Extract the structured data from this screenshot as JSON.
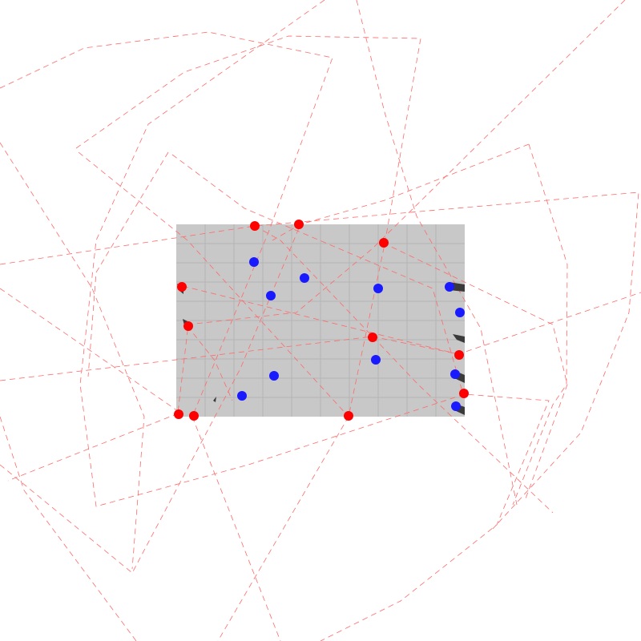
{
  "colors": {
    "background": "#ffffff",
    "arena_fill": "#c8c8c8",
    "arena_grid": "#b4b4b4",
    "path_line": "#ff6a6a",
    "red_team": "#ff0000",
    "blue_team": "#1a1aff",
    "pointer": "#3a3a3a"
  },
  "arena": {
    "grid_columns": 10,
    "grid_rows": 10
  },
  "units": {
    "red_count": 12,
    "blue_count": 12
  }
}
